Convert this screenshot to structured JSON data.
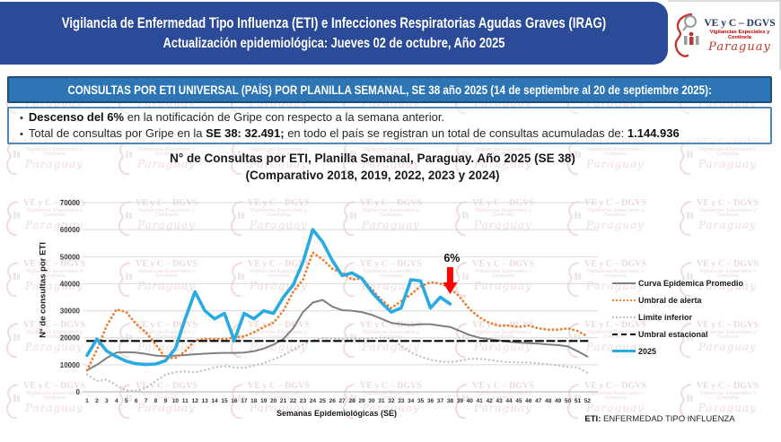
{
  "header": {
    "title_line1": "Vigilancia de Enfermedad Tipo Influenza (ETI) e Infecciones Respiratorias Agudas Graves (IRAG)",
    "title_line2": "Actualización epidemiológica: Jueves 02 de octubre, Año 2025",
    "logo": {
      "org": "VE y C – DGVS",
      "sub1": "Vigilancias Especiales y",
      "sub2": "Centinela",
      "country": "Paraguay"
    }
  },
  "banner": {
    "text": "CONSULTAS POR ETI UNIVERSAL (PAÍS) POR PLANILLA SEMANAL, SE 38 año 2025 (14 de septiembre al 20 de septiembre 2025):"
  },
  "highlights": {
    "bullet1_bold": "Descenso del 6%",
    "bullet1_rest": " en la notificación de Gripe con respecto a la semana anterior.",
    "bullet2_pre": "Total de consultas por Gripe en la ",
    "bullet2_bold1": "SE 38: 32.491;",
    "bullet2_mid": " en todo el país se registran un total de consultas acumuladas de: ",
    "bullet2_bold2": "1.144.936"
  },
  "chart_data": {
    "type": "line",
    "title_line1": "N° de Consultas por ETI, Planilla Semanal, Paraguay. Año 2025  (SE 38)",
    "title_line2": "(Comparativo 2018, 2019, 2022, 2023 y 2024)",
    "xlabel": "Semanas Epidemiológicas (SE)",
    "ylabel": "N° de consultas por ETI",
    "ylim": [
      0,
      70000
    ],
    "yticks": [
      0,
      10000,
      20000,
      30000,
      40000,
      50000,
      60000,
      70000
    ],
    "x": [
      1,
      2,
      3,
      4,
      5,
      6,
      7,
      8,
      9,
      10,
      11,
      12,
      13,
      14,
      15,
      16,
      17,
      18,
      19,
      20,
      21,
      22,
      23,
      24,
      25,
      26,
      27,
      28,
      29,
      30,
      31,
      32,
      33,
      34,
      35,
      36,
      37,
      38,
      39,
      40,
      41,
      42,
      43,
      44,
      45,
      46,
      47,
      48,
      49,
      50,
      51,
      52
    ],
    "grid": true,
    "legend_position": "right",
    "annotation": {
      "label": "6%",
      "week": 38
    },
    "series": [
      {
        "name": "Curva Epidemica Promedio",
        "color": "#7F7F7F",
        "style": "solid",
        "width": 2,
        "values": [
          8000,
          10000,
          12500,
          14500,
          14700,
          14500,
          14000,
          13400,
          13200,
          13400,
          13600,
          13900,
          14100,
          14300,
          14400,
          14400,
          14500,
          15000,
          16000,
          17500,
          19500,
          23500,
          29500,
          33000,
          34000,
          31500,
          30200,
          30000,
          29500,
          28500,
          27000,
          25500,
          25000,
          24700,
          25000,
          25000,
          24500,
          24000,
          22500,
          21000,
          20000,
          19500,
          19000,
          18500,
          18200,
          18000,
          17800,
          17500,
          17300,
          16800,
          15000,
          13000
        ]
      },
      {
        "name": "Umbral de alerta",
        "color": "#ED7D31",
        "style": "dotted",
        "width": 2.8,
        "values": [
          8000,
          15500,
          24500,
          30500,
          29500,
          25000,
          22000,
          17500,
          12500,
          12500,
          15000,
          19000,
          19500,
          19500,
          19500,
          20000,
          20500,
          22000,
          24000,
          25500,
          30000,
          37000,
          41500,
          51500,
          49000,
          45500,
          44000,
          41500,
          42000,
          38000,
          34000,
          31000,
          33500,
          36000,
          39000,
          40500,
          40000,
          38500,
          35000,
          30500,
          27500,
          25500,
          24500,
          24500,
          24000,
          24500,
          23500,
          23000,
          23000,
          23500,
          22500,
          20500
        ]
      },
      {
        "name": "Limite inferior",
        "color": "#BFBFBF",
        "style": "dotted",
        "width": 2.3,
        "values": [
          6400,
          4000,
          4500,
          2300,
          500,
          300,
          1500,
          4000,
          6300,
          7300,
          7500,
          7200,
          8000,
          9000,
          9500,
          9000,
          8800,
          9800,
          10500,
          12000,
          13500,
          15500,
          17500,
          19000,
          19800,
          19700,
          19500,
          19500,
          19600,
          19800,
          20000,
          19800,
          17000,
          14500,
          13000,
          11800,
          11200,
          11000,
          11500,
          12200,
          12200,
          11800,
          11200,
          11000,
          10800,
          10800,
          10500,
          10200,
          9800,
          9200,
          9000,
          7000
        ]
      },
      {
        "name": "Umbral estacional",
        "color": "#000000",
        "style": "dashed",
        "width": 2.2,
        "constant": 18800
      },
      {
        "name": "2025",
        "color": "#29ABE2",
        "style": "solid",
        "width": 3.6,
        "values": [
          13500,
          19500,
          15100,
          13000,
          11300,
          10400,
          10100,
          10300,
          11500,
          16000,
          27000,
          37000,
          30000,
          27000,
          29000,
          19000,
          29000,
          27000,
          30000,
          29000,
          35000,
          39500,
          48000,
          60000,
          55500,
          48500,
          43000,
          44000,
          42000,
          37000,
          33000,
          29500,
          31000,
          41500,
          41000,
          31000,
          35000,
          32500
        ]
      }
    ],
    "annotation_color": "#FF0000"
  },
  "footnote": {
    "bold": "ETI:",
    "rest": " ENFERMEDAD TIPO INFLUENZA"
  },
  "watermark": {
    "line1": "VE y C – DGVS",
    "line2": "Vigilancias Especiales y",
    "line3": "Centinela",
    "line4": "Paraguay"
  },
  "colors": {
    "header_bg": "#2b4a97",
    "subbanner_bg": "#2e75b6",
    "subbanner_border": "#1f4e79",
    "bulletbox_border": "#4f86c0",
    "accent_2025": "#29ABE2",
    "alert_orange": "#ED7D31",
    "arrow_red": "#FF0000"
  }
}
